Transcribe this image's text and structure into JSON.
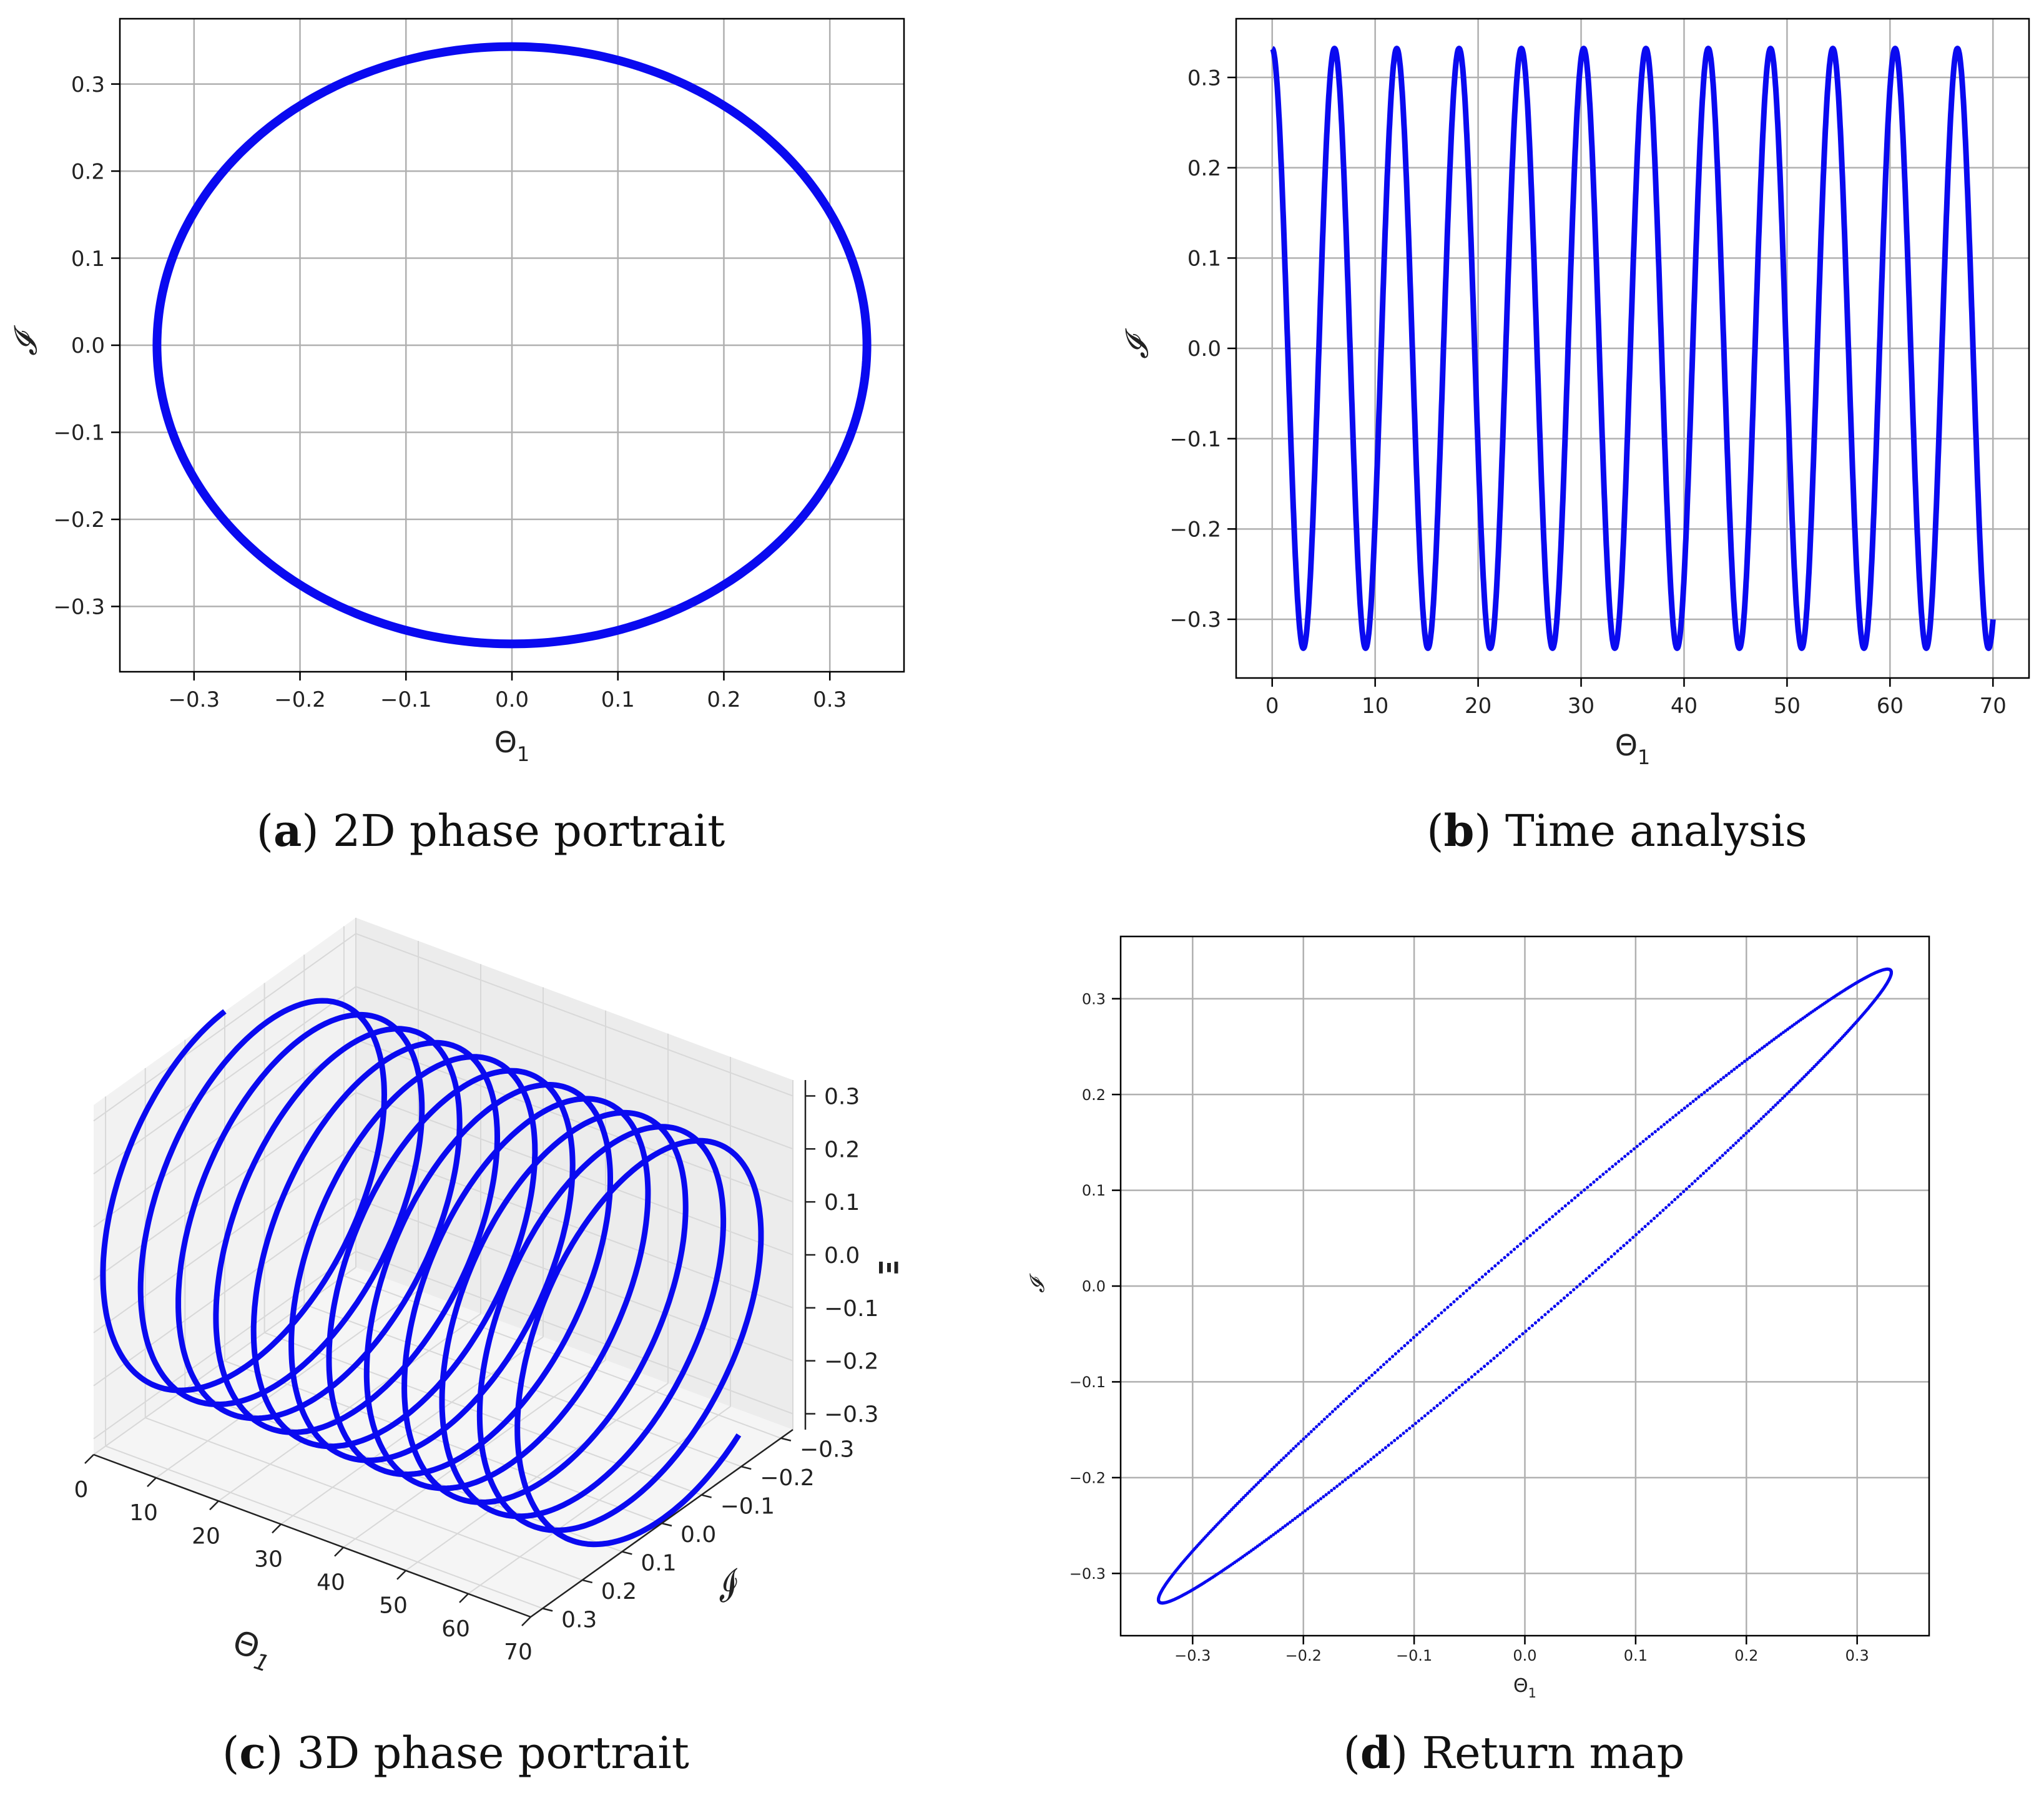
{
  "colors": {
    "series": "#0a0af0",
    "grid": "#b0b0b0",
    "frame": "#000000"
  },
  "chart_data": [
    {
      "id": "a",
      "type": "line",
      "caption_letter": "a",
      "caption_text": "2D phase portrait",
      "xlabel_main": "Θ",
      "xlabel_sub": "1",
      "ylabel": "𝓘",
      "xlim": [
        -0.37,
        0.37
      ],
      "ylim": [
        -0.375,
        0.375
      ],
      "xticks": [
        -0.3,
        -0.2,
        -0.1,
        0.0,
        0.1,
        0.2,
        0.3
      ],
      "xtick_labels": [
        "−0.3",
        "−0.2",
        "−0.1",
        "0.0",
        "0.1",
        "0.2",
        "0.3"
      ],
      "yticks": [
        -0.3,
        -0.2,
        -0.1,
        0.0,
        0.1,
        0.2,
        0.3
      ],
      "ytick_labels": [
        "−0.3",
        "−0.2",
        "−0.1",
        "0.0",
        "0.1",
        "0.2",
        "0.3"
      ],
      "grid": true,
      "series": [
        {
          "shape": "ellipse",
          "cx": 0.0,
          "cy": 0.0,
          "rx": 0.335,
          "ry": 0.343
        }
      ]
    },
    {
      "id": "b",
      "type": "line",
      "caption_letter": "b",
      "caption_text": "Time analysis",
      "xlabel_main": "Θ",
      "xlabel_sub": "1",
      "ylabel": "𝓘",
      "xlim": [
        -3.5,
        73.5
      ],
      "ylim": [
        -0.365,
        0.365
      ],
      "xticks": [
        0,
        10,
        20,
        30,
        40,
        50,
        60,
        70
      ],
      "xtick_labels": [
        "0",
        "10",
        "20",
        "30",
        "40",
        "50",
        "60",
        "70"
      ],
      "yticks": [
        -0.3,
        -0.2,
        -0.1,
        0.0,
        0.1,
        0.2,
        0.3
      ],
      "ytick_labels": [
        "−0.3",
        "−0.2",
        "−0.1",
        "0.0",
        "0.1",
        "0.2",
        "0.3"
      ],
      "grid": true,
      "series": [
        {
          "shape": "cosine",
          "amplitude": 0.332,
          "period": 6.05,
          "t_start": 0,
          "t_end": 70
        }
      ]
    },
    {
      "id": "c",
      "type": "line",
      "caption_letter": "c",
      "caption_text": "3D phase portrait",
      "xlabel_main": "Θ",
      "xlabel_sub": "1",
      "ylabel": "𝓘",
      "zlabel": "Ξ",
      "x_ticks_labels": [
        "0",
        "10",
        "20",
        "30",
        "40",
        "50",
        "60",
        "70"
      ],
      "y_ticks_labels": [
        "−0.3",
        "−0.2",
        "−0.1",
        "0.0",
        "0.1",
        "0.2",
        "0.3"
      ],
      "z_ticks_labels": [
        "−0.3",
        "−0.2",
        "−0.1",
        "0.0",
        "0.1",
        "0.2",
        "0.3"
      ],
      "xlim": [
        0,
        70
      ],
      "ylim": [
        -0.33,
        0.33
      ],
      "zlim": [
        -0.33,
        0.33
      ],
      "grid": true,
      "series": [
        {
          "shape": "helix",
          "turns": 11.6,
          "t_start": 0,
          "t_end": 70,
          "radius": 0.33
        }
      ]
    },
    {
      "id": "d",
      "type": "scatter",
      "caption_letter": "d",
      "caption_text": "Return map",
      "xlabel_main": "Θ",
      "xlabel_sub": "1",
      "ylabel": "𝓘",
      "xlim": [
        -0.365,
        0.365
      ],
      "ylim": [
        -0.365,
        0.365
      ],
      "xticks": [
        -0.3,
        -0.2,
        -0.1,
        0.0,
        0.1,
        0.2,
        0.3
      ],
      "xtick_labels": [
        "−0.3",
        "−0.2",
        "−0.1",
        "0.0",
        "0.1",
        "0.2",
        "0.3"
      ],
      "yticks": [
        -0.3,
        -0.2,
        -0.1,
        0.0,
        0.1,
        0.2,
        0.3
      ],
      "ytick_labels": [
        "−0.3",
        "−0.2",
        "−0.1",
        "0.0",
        "0.1",
        "0.2",
        "0.3"
      ],
      "grid": true,
      "series": [
        {
          "shape": "tilted-ellipse",
          "angle_deg": 45,
          "major_extent": 0.33,
          "minor_halfwidth": 0.012
        }
      ]
    }
  ]
}
